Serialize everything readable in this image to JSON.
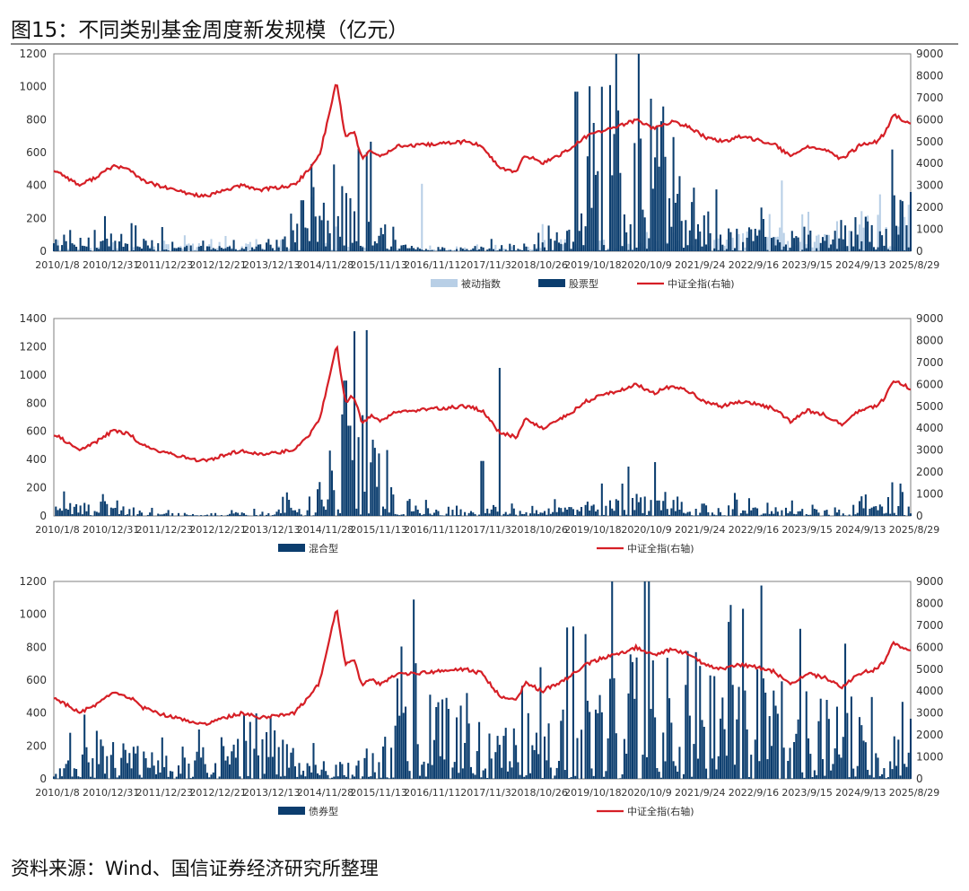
{
  "figure": {
    "title": "图15：不同类别基金周度新发规模（亿元）",
    "source": "资料来源：Wind、国信证券经济研究所整理"
  },
  "colors": {
    "passive": "#b8cfe6",
    "equity": "#0b3d6e",
    "mixed": "#0b3d6e",
    "bond": "#0b3d6e",
    "index_line": "#d61f26"
  },
  "chart_data": [
    {
      "type": "bar",
      "name": "top",
      "x_tick_labels": [
        "2010/1/8",
        "2010/12/31",
        "2011/12/23",
        "2012/12/21",
        "2013/12/13",
        "2014/11/28",
        "2015/11/13",
        "2016/11/11",
        "2017/11/3",
        "2018/10/26",
        "2019/10/18",
        "2020/10/9",
        "2021/9/24",
        "2022/9/16",
        "2023/9/15",
        "2024/9/13",
        "2025/8/29"
      ],
      "ylim": [
        0,
        1200
      ],
      "yticks": [
        0,
        200,
        400,
        600,
        800,
        1000,
        1200
      ],
      "y2lim": [
        0,
        9000
      ],
      "y2ticks": [
        0,
        1000,
        2000,
        3000,
        4000,
        5000,
        6000,
        7000,
        8000,
        9000
      ],
      "legend": [
        "被动指数",
        "股票型",
        "中证全指(右轴)"
      ],
      "legend_position": "bottom",
      "series": [
        {
          "name": "被动指数",
          "kind": "bar",
          "color": "#b8cfe6",
          "x": [
            0.02,
            0.08,
            0.15,
            0.18,
            0.3,
            0.52,
            0.6,
            0.7,
            0.75,
            0.78,
            0.82,
            0.85,
            0.9,
            0.93,
            0.96,
            1.0
          ],
          "y": [
            20,
            15,
            25,
            30,
            15,
            10,
            40,
            35,
            40,
            45,
            70,
            80,
            60,
            90,
            120,
            160
          ],
          "spikes": [
            [
              0.3,
              330
            ],
            [
              0.33,
              150
            ],
            [
              0.57,
              165
            ],
            [
              0.43,
              410
            ],
            [
              0.7,
              380
            ],
            [
              0.85,
              430
            ],
            [
              0.88,
              240
            ]
          ]
        },
        {
          "name": "股票型",
          "kind": "bar",
          "color": "#0b3d6e",
          "x": [
            0.0,
            0.05,
            0.1,
            0.15,
            0.2,
            0.25,
            0.3,
            0.35,
            0.4,
            0.45,
            0.5,
            0.55,
            0.6,
            0.65,
            0.7,
            0.75,
            0.8,
            0.85,
            0.9,
            0.95,
            1.0
          ],
          "y": [
            50,
            70,
            40,
            35,
            20,
            30,
            110,
            280,
            30,
            15,
            20,
            30,
            80,
            450,
            700,
            180,
            90,
            70,
            60,
            120,
            200
          ],
          "spikes": [
            [
              0.3,
              530
            ],
            [
              0.29,
              310
            ],
            [
              0.61,
              970
            ],
            [
              0.63,
              780
            ],
            [
              0.64,
              1000
            ],
            [
              0.65,
              1010
            ],
            [
              0.7,
              380
            ],
            [
              0.98,
              340
            ]
          ]
        },
        {
          "name": "中证全指(右轴)",
          "kind": "line",
          "axis": "right",
          "color": "#d61f26",
          "x": [
            0,
            0.01,
            0.03,
            0.05,
            0.07,
            0.09,
            0.1,
            0.12,
            0.14,
            0.16,
            0.18,
            0.2,
            0.22,
            0.24,
            0.26,
            0.28,
            0.3,
            0.31,
            0.32,
            0.33,
            0.34,
            0.35,
            0.36,
            0.37,
            0.38,
            0.4,
            0.42,
            0.45,
            0.48,
            0.5,
            0.52,
            0.54,
            0.55,
            0.57,
            0.58,
            0.6,
            0.62,
            0.64,
            0.66,
            0.68,
            0.7,
            0.72,
            0.74,
            0.76,
            0.78,
            0.8,
            0.82,
            0.84,
            0.86,
            0.88,
            0.9,
            0.92,
            0.94,
            0.96,
            0.97,
            0.98,
            1.0
          ],
          "y": [
            3700,
            3500,
            3000,
            3400,
            3900,
            3700,
            3300,
            3000,
            2800,
            2600,
            2500,
            2800,
            3000,
            2800,
            2900,
            3000,
            3800,
            4400,
            6000,
            7800,
            5200,
            5500,
            4200,
            4600,
            4300,
            4800,
            4800,
            4900,
            5000,
            4800,
            3800,
            3600,
            4400,
            4000,
            4200,
            4600,
            5200,
            5500,
            5700,
            6000,
            5600,
            5900,
            5700,
            5200,
            5000,
            5200,
            5100,
            4900,
            4300,
            4800,
            4600,
            4200,
            4800,
            5000,
            5400,
            6200,
            5800
          ]
        }
      ]
    },
    {
      "type": "bar",
      "name": "middle",
      "x_tick_labels": [
        "2010/1/8",
        "2010/12/31",
        "2011/12/23",
        "2012/12/21",
        "2013/12/13",
        "2014/11/28",
        "2015/11/13",
        "2016/11/11",
        "2017/11/3",
        "2018/10/26",
        "2019/10/18",
        "2020/10/9",
        "2021/9/24",
        "2022/9/16",
        "2023/9/15",
        "2024/9/13",
        "2025/8/29"
      ],
      "ylim": [
        0,
        1400
      ],
      "yticks": [
        0,
        200,
        400,
        600,
        800,
        1000,
        1200,
        1400
      ],
      "y2lim": [
        0,
        9000
      ],
      "y2ticks": [
        0,
        1000,
        2000,
        3000,
        4000,
        5000,
        6000,
        7000,
        8000,
        9000
      ],
      "legend": [
        "混合型",
        "中证全指(右轴)"
      ],
      "legend_position": "bottom",
      "series": [
        {
          "name": "混合型",
          "kind": "bar",
          "color": "#0b3d6e",
          "x": [
            0.0,
            0.05,
            0.1,
            0.15,
            0.2,
            0.25,
            0.3,
            0.35,
            0.4,
            0.45,
            0.5,
            0.55,
            0.6,
            0.65,
            0.7,
            0.75,
            0.8,
            0.85,
            0.9,
            0.95,
            1.0
          ],
          "y": [
            40,
            60,
            20,
            15,
            10,
            20,
            80,
            500,
            60,
            40,
            30,
            20,
            40,
            80,
            100,
            50,
            40,
            30,
            25,
            40,
            80
          ],
          "spikes": [
            [
              0.34,
              960
            ],
            [
              0.35,
              1310
            ],
            [
              0.345,
              640
            ],
            [
              0.37,
              380
            ],
            [
              0.52,
              1050
            ],
            [
              0.5,
              390
            ],
            [
              0.67,
              350
            ],
            [
              0.64,
              230
            ],
            [
              0.99,
              170
            ]
          ]
        },
        {
          "name": "中证全指(右轴)",
          "kind": "line",
          "axis": "right",
          "color": "#d61f26",
          "x": [
            0,
            0.01,
            0.03,
            0.05,
            0.07,
            0.09,
            0.1,
            0.12,
            0.14,
            0.16,
            0.18,
            0.2,
            0.22,
            0.24,
            0.26,
            0.28,
            0.3,
            0.31,
            0.32,
            0.33,
            0.34,
            0.35,
            0.36,
            0.37,
            0.38,
            0.4,
            0.42,
            0.45,
            0.48,
            0.5,
            0.52,
            0.54,
            0.55,
            0.57,
            0.58,
            0.6,
            0.62,
            0.64,
            0.66,
            0.68,
            0.7,
            0.72,
            0.74,
            0.76,
            0.78,
            0.8,
            0.82,
            0.84,
            0.86,
            0.88,
            0.9,
            0.92,
            0.94,
            0.96,
            0.97,
            0.98,
            1.0
          ],
          "y": [
            3700,
            3500,
            3000,
            3400,
            3900,
            3700,
            3300,
            3000,
            2800,
            2600,
            2500,
            2800,
            3000,
            2800,
            2900,
            3000,
            3800,
            4400,
            6000,
            7800,
            5200,
            5500,
            4200,
            4600,
            4300,
            4800,
            4800,
            4900,
            5000,
            4800,
            3800,
            3600,
            4400,
            4000,
            4200,
            4600,
            5200,
            5500,
            5700,
            6000,
            5600,
            5900,
            5700,
            5200,
            5000,
            5200,
            5100,
            4900,
            4300,
            4800,
            4600,
            4200,
            4800,
            5000,
            5400,
            6200,
            5800
          ]
        }
      ]
    },
    {
      "type": "bar",
      "name": "bottom",
      "x_tick_labels": [
        "2010/1/8",
        "2010/12/31",
        "2011/12/23",
        "2012/12/21",
        "2013/12/13",
        "2014/11/28",
        "2015/11/13",
        "2016/11/11",
        "2017/11/3",
        "2018/10/26",
        "2019/10/18",
        "2020/10/9",
        "2021/9/24",
        "2022/9/16",
        "2023/9/15",
        "2024/9/13",
        "2025/8/29"
      ],
      "ylim": [
        0,
        1200
      ],
      "yticks": [
        0,
        200,
        400,
        600,
        800,
        1000,
        1200
      ],
      "y2lim": [
        0,
        9000
      ],
      "y2ticks": [
        0,
        1000,
        2000,
        3000,
        4000,
        5000,
        6000,
        7000,
        8000,
        9000
      ],
      "legend": [
        "债券型",
        "中证全指(右轴)"
      ],
      "legend_position": "bottom",
      "series": [
        {
          "name": "债券型",
          "kind": "bar",
          "color": "#0b3d6e",
          "x": [
            0.0,
            0.05,
            0.1,
            0.15,
            0.2,
            0.25,
            0.3,
            0.35,
            0.4,
            0.45,
            0.5,
            0.55,
            0.6,
            0.65,
            0.7,
            0.75,
            0.8,
            0.85,
            0.9,
            0.95,
            1.0
          ],
          "y": [
            30,
            150,
            100,
            60,
            150,
            200,
            60,
            50,
            200,
            300,
            180,
            150,
            250,
            380,
            400,
            350,
            330,
            300,
            250,
            180,
            120
          ],
          "spikes": [
            [
              0.02,
              280
            ],
            [
              0.17,
              300
            ],
            [
              0.4,
              610
            ],
            [
              0.42,
              1090
            ],
            [
              0.6,
              920
            ],
            [
              0.62,
              880
            ],
            [
              0.7,
              720
            ],
            [
              0.75,
              770
            ],
            [
              0.93,
              500
            ]
          ]
        },
        {
          "name": "中证全指(右轴)",
          "kind": "line",
          "axis": "right",
          "color": "#d61f26",
          "x": [
            0,
            0.01,
            0.03,
            0.05,
            0.07,
            0.09,
            0.1,
            0.12,
            0.14,
            0.16,
            0.18,
            0.2,
            0.22,
            0.24,
            0.26,
            0.28,
            0.3,
            0.31,
            0.32,
            0.33,
            0.34,
            0.35,
            0.36,
            0.37,
            0.38,
            0.4,
            0.42,
            0.45,
            0.48,
            0.5,
            0.52,
            0.54,
            0.55,
            0.57,
            0.58,
            0.6,
            0.62,
            0.64,
            0.66,
            0.68,
            0.7,
            0.72,
            0.74,
            0.76,
            0.78,
            0.8,
            0.82,
            0.84,
            0.86,
            0.88,
            0.9,
            0.92,
            0.94,
            0.96,
            0.97,
            0.98,
            1.0
          ],
          "y": [
            3700,
            3500,
            3000,
            3400,
            3900,
            3700,
            3300,
            3000,
            2800,
            2600,
            2500,
            2800,
            3000,
            2800,
            2900,
            3000,
            3800,
            4400,
            6000,
            7800,
            5200,
            5500,
            4200,
            4600,
            4300,
            4800,
            4800,
            4900,
            5000,
            4800,
            3800,
            3600,
            4400,
            4000,
            4200,
            4600,
            5200,
            5500,
            5700,
            6000,
            5600,
            5900,
            5700,
            5200,
            5000,
            5200,
            5100,
            4900,
            4300,
            4800,
            4600,
            4200,
            4800,
            5000,
            5400,
            6200,
            5800
          ]
        }
      ]
    }
  ]
}
